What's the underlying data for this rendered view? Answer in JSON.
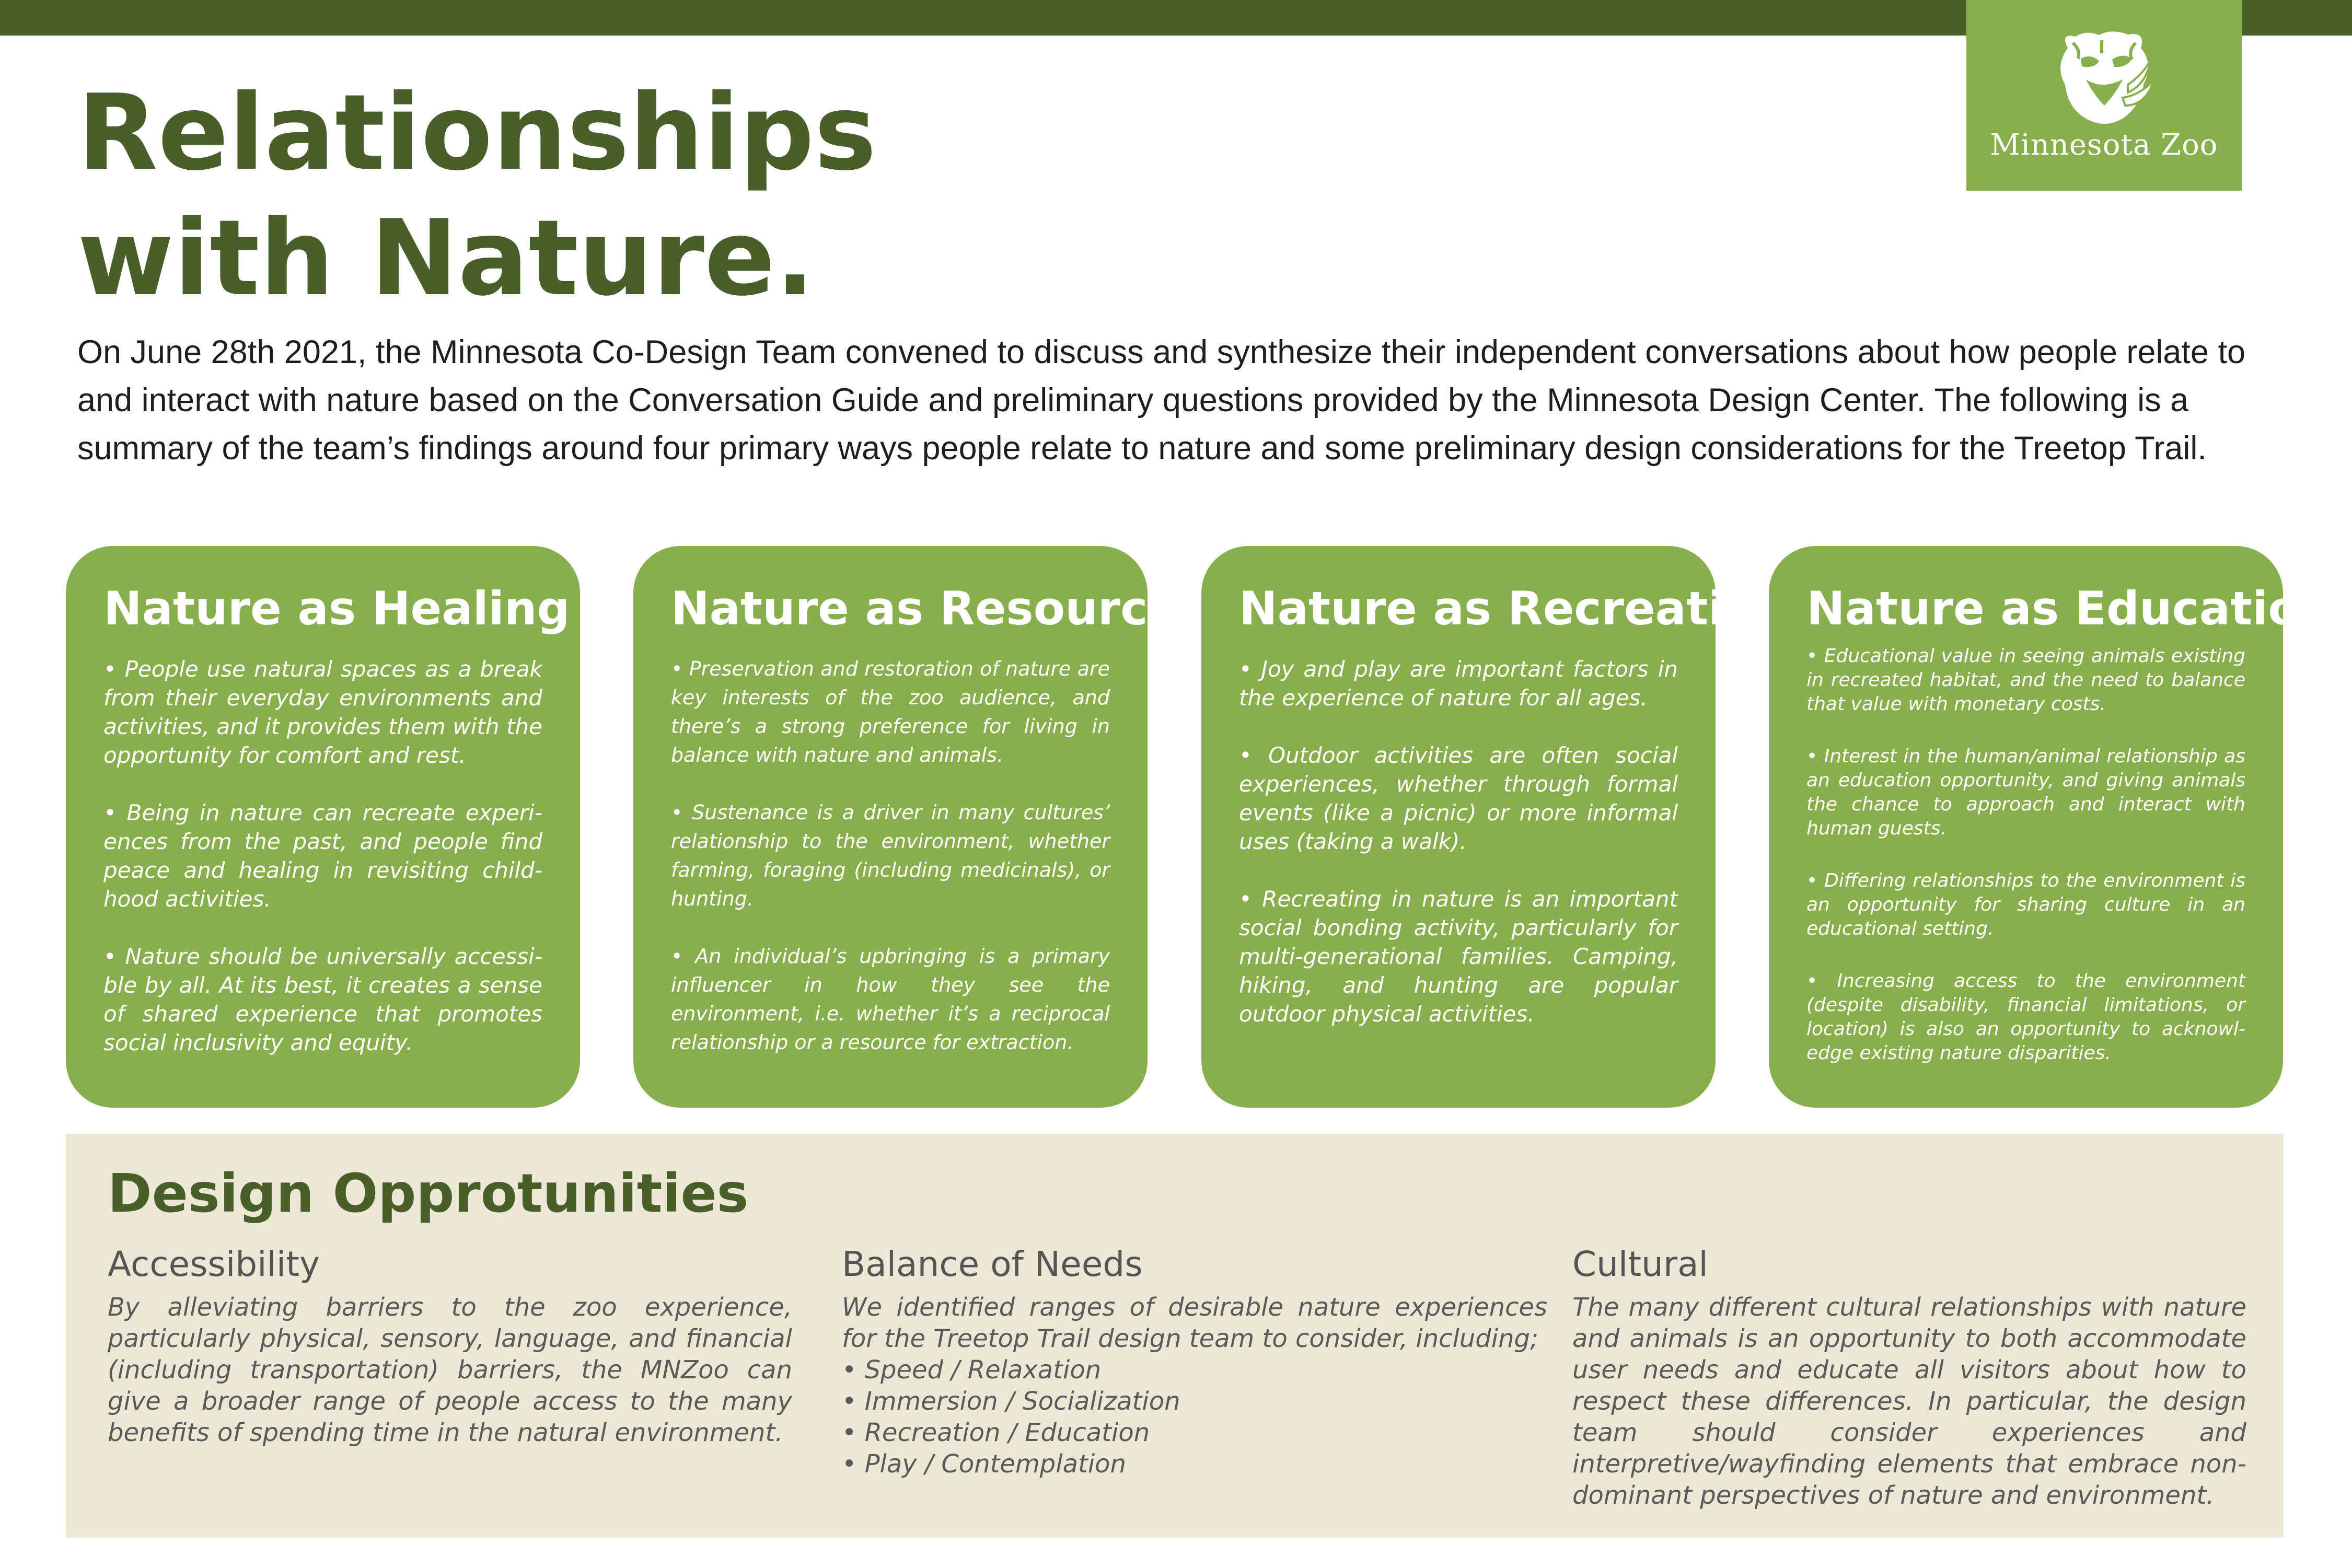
{
  "header": {
    "title_line1": "Relationships",
    "title_line2": "with Nature.",
    "brand": "Minnesota Zoo",
    "colors": {
      "dark_green": "#4a5e2c",
      "light_green": "#89ae4d",
      "beige": "#ece8d6"
    }
  },
  "intro": "On June 28th 2021, the Minnesota Co-Design Team convened to discuss and synthesize their independent conversations about how people relate to and interact with nature based on the Conversation Guide and preliminary questions provided by the Minnesota Design Center. The following is a summary of the team’s findings around four primary ways people relate to nature and some preliminary design considerations for the Treetop Trail.",
  "cards": [
    {
      "title": "Nature as Healing",
      "points": [
        "• People use natural spaces as a break from their everyday environments and activities, and it provides them with the opportunity for comfort and rest.",
        "• Being in nature can recreate experi­ences from the past, and people find peace and healing in revisiting child­hood activities.",
        "• Nature should be universally accessi­ble by all. At its best, it creates a sense of shared experience that promotes social inclusivity and equity."
      ]
    },
    {
      "title": "Nature as Resource",
      "points": [
        "• Preservation and restoration of nature are key interests of the zoo audience, and there’s a strong preference for living in balance with nature and animals.",
        "• Sustenance is a driver in many cultures’ relationship to the environment, whether farming, foraging (including medicinals), or hunting.",
        "• An individual’s upbringing is a primary influencer in how they see the environment, i.e. whether it’s a reciprocal relationship or a resource for extraction."
      ]
    },
    {
      "title": "Nature as Recreation",
      "points": [
        "• Joy and play are important factors in the experience of nature for all ages.",
        "• Outdoor activities are often social experiences, whether through formal events (like a picnic) or more informal uses (taking a walk).",
        "• Recreating in nature is an important social bonding activity, particularly for multi-generational families. Camping, hiking, and hunting are popular outdoor physical activities."
      ]
    },
    {
      "title": "Nature as Education",
      "points": [
        "• Educational value in seeing animals existing in recreated habitat, and the need to balance that value with monetary costs.",
        "• Interest in the human/animal relationship as an education opportunity, and giving animals the chance to approach and interact with human guests.",
        "• Differing relationships to the environment is an opportunity for sharing culture in an educa­tional setting.",
        "• Increasing access to the environment (despite disability, financial limitations, or location) is also an opportunity to acknowl­edge existing nature disparities."
      ]
    }
  ],
  "design": {
    "heading": "Design Opprotunities",
    "accessibility": {
      "title": "Accessibility",
      "text": "By alleviating barriers to the zoo experience, particularly physical, sensory, language, and financial (including transportation) barriers, the MNZoo can give a broader range of people access to the many benefits of spending time in the natural environment."
    },
    "balance": {
      "title": "Balance of Needs",
      "intro": "We identified ranges of desirable nature experiences for the Treetop Trail design team to consider, including;",
      "items": [
        "• Speed / Relaxation",
        "• Immersion / Socialization",
        "• Recreation / Education",
        "• Play / Contemplation"
      ]
    },
    "cultural": {
      "title": "Cultural",
      "text": "The many different cultural relationships with nature and animals is an opportunity to both accommodate user needs and educate all visitors about how to respect these differences. In particular, the design team should consider experiences and interpretive/wayfind­ing elements that embrace non-dominant perspectives of nature and environment."
    }
  }
}
